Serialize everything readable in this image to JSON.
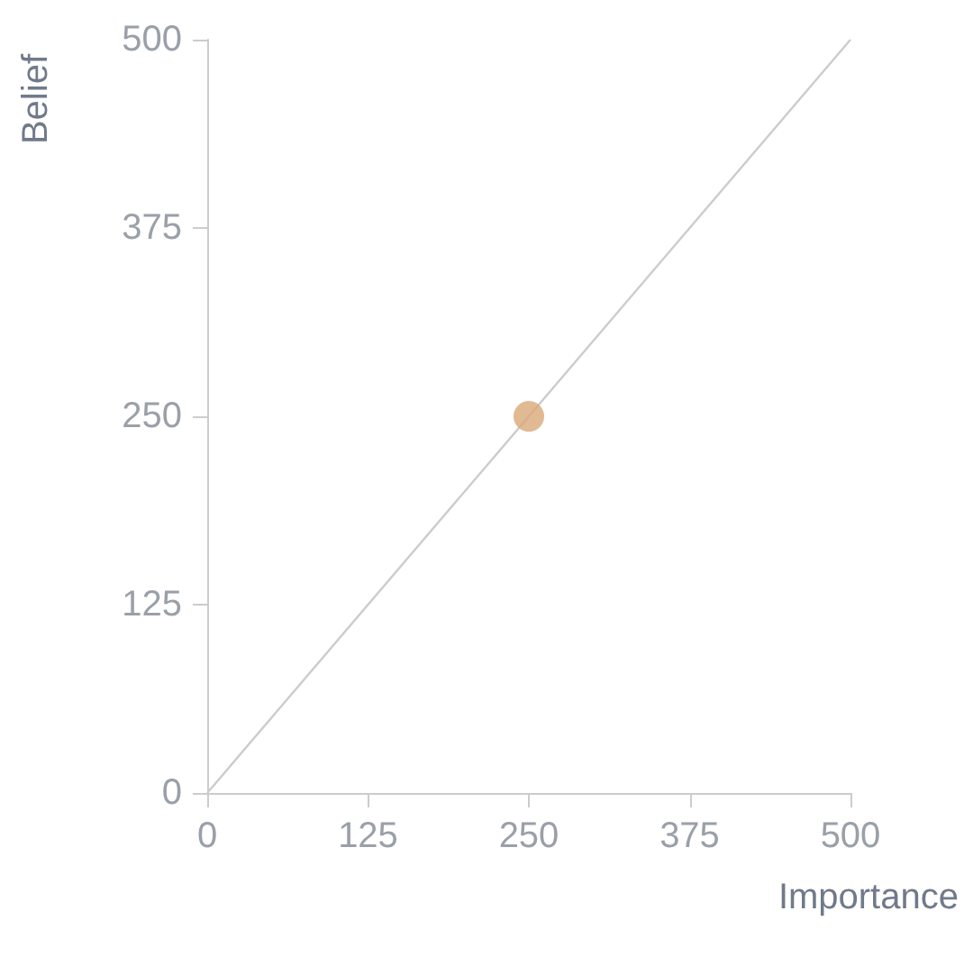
{
  "chart_data": {
    "type": "scatter",
    "xlabel": "Importance",
    "ylabel": "Belief",
    "series": [
      {
        "type": "line",
        "color": "#cccccc",
        "x": [
          0,
          500
        ],
        "values": [
          0,
          500
        ],
        "marker": "none"
      },
      {
        "color": "#d9a877",
        "x": [
          250
        ],
        "values": [
          250
        ],
        "marker": "circle"
      }
    ],
    "xlim": [
      0,
      500
    ],
    "ylim": [
      0,
      500
    ],
    "xticks": [
      0,
      125,
      250,
      375,
      500
    ],
    "yticks": [
      0,
      125,
      250,
      375,
      500
    ],
    "grid": false
  }
}
